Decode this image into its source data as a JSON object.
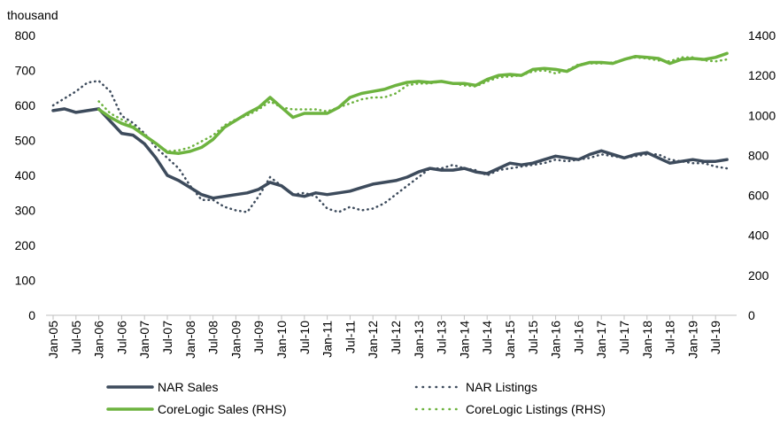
{
  "chart_data": {
    "type": "line",
    "y_label": "thousand",
    "categories": [
      "Jan-05",
      null,
      "Jul-05",
      null,
      "Jan-06",
      null,
      "Jul-06",
      null,
      "Jan-07",
      null,
      "Jul-07",
      null,
      "Jan-08",
      null,
      "Jul-08",
      null,
      "Jan-09",
      null,
      "Jul-09",
      null,
      "Jan-10",
      null,
      "Jul-10",
      null,
      "Jan-11",
      null,
      "Jul-11",
      null,
      "Jan-12",
      null,
      "Jul-12",
      null,
      "Jan-13",
      null,
      "Jul-13",
      null,
      "Jan-14",
      null,
      "Jul-14",
      null,
      "Jan-15",
      null,
      "Jul-15",
      null,
      "Jan-16",
      null,
      "Jul-16",
      null,
      "Jan-17",
      null,
      "Jul-17",
      null,
      "Jan-18",
      null,
      "Jul-18",
      null,
      "Jan-19",
      null,
      "Jul-19",
      null
    ],
    "ylim": [
      0,
      800
    ],
    "yticks": [
      0,
      100,
      200,
      300,
      400,
      500,
      600,
      700,
      800
    ],
    "y2lim": [
      0,
      1400
    ],
    "y2ticks": [
      0,
      200,
      400,
      600,
      800,
      1000,
      1200,
      1400
    ],
    "grid": false,
    "series": [
      {
        "name": "NAR Sales",
        "color": "#3d4b5c",
        "line_style": "solid",
        "values": [
          585,
          590,
          580,
          585,
          590,
          555,
          520,
          515,
          490,
          450,
          400,
          385,
          365,
          345,
          335,
          340,
          345,
          350,
          360,
          380,
          370,
          345,
          340,
          350,
          345,
          350,
          355,
          365,
          375,
          380,
          385,
          395,
          410,
          420,
          415,
          415,
          420,
          410,
          405,
          420,
          435,
          430,
          435,
          445,
          455,
          450,
          445,
          460,
          470,
          460,
          450,
          460,
          465,
          450,
          435,
          440,
          445,
          440,
          440,
          445
        ]
      },
      {
        "name": "NAR Listings",
        "color": "#3d4b5c",
        "line_style": "dotted",
        "values": [
          600,
          620,
          640,
          665,
          670,
          640,
          570,
          550,
          520,
          480,
          450,
          420,
          370,
          330,
          330,
          310,
          300,
          295,
          340,
          395,
          370,
          345,
          350,
          340,
          305,
          295,
          310,
          300,
          305,
          320,
          345,
          370,
          395,
          420,
          420,
          430,
          420,
          415,
          400,
          415,
          420,
          425,
          430,
          435,
          445,
          440,
          445,
          450,
          460,
          455,
          450,
          455,
          460,
          460,
          445,
          440,
          435,
          435,
          425,
          420
        ]
      },
      {
        "name": "CoreLogic Sales (RHS)",
        "color": "#6db33f",
        "line_style": "solid",
        "axis": "y2",
        "values": [
          null,
          null,
          null,
          null,
          1030,
          990,
          960,
          940,
          900,
          860,
          815,
          810,
          820,
          840,
          880,
          940,
          975,
          1010,
          1040,
          1090,
          1040,
          990,
          1010,
          1010,
          1010,
          1040,
          1090,
          1110,
          1120,
          1130,
          1150,
          1165,
          1170,
          1165,
          1170,
          1160,
          1160,
          1150,
          1180,
          1200,
          1205,
          1200,
          1230,
          1235,
          1230,
          1220,
          1250,
          1265,
          1265,
          1260,
          1280,
          1295,
          1290,
          1285,
          1260,
          1280,
          1285,
          1280,
          1290,
          1310
        ]
      },
      {
        "name": "CoreLogic Listings (RHS)",
        "color": "#6db33f",
        "line_style": "dotted",
        "axis": "y2",
        "values": [
          null,
          null,
          null,
          null,
          1070,
          1010,
          980,
          950,
          900,
          860,
          820,
          825,
          840,
          870,
          900,
          950,
          980,
          1000,
          1030,
          1070,
          1040,
          1030,
          1030,
          1030,
          1020,
          1040,
          1060,
          1080,
          1090,
          1090,
          1110,
          1150,
          1160,
          1160,
          1170,
          1160,
          1150,
          1145,
          1170,
          1190,
          1195,
          1200,
          1220,
          1225,
          1210,
          1225,
          1255,
          1260,
          1260,
          1265,
          1280,
          1290,
          1285,
          1275,
          1270,
          1290,
          1290,
          1275,
          1270,
          1280
        ]
      }
    ]
  }
}
